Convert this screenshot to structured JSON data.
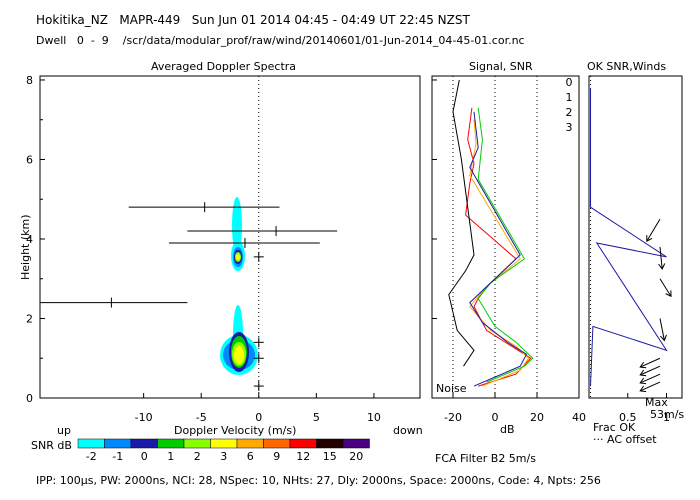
{
  "header": {
    "line1": "Hokitika_NZ   MAPR-449   Sun Jun 01 2014 04:45 - 04:49 UT 22:45 NZST",
    "line2": "Dwell   0  -  9    /scr/data/modular_prof/raw/wind/20140601/01-Jun-2014_04-45-01.cor.nc"
  },
  "chart_data": [
    {
      "type": "scatter",
      "title": "Averaged Doppler Spectra",
      "xlabel": "Doppler Velocity (m/s)",
      "ylabel": "Height (km)",
      "xlim": [
        -19,
        14
      ],
      "ylim": [
        0,
        8.1
      ],
      "xticks": [
        -10,
        -5,
        0,
        5,
        10
      ],
      "yticks": [
        0,
        2,
        4,
        6,
        8
      ],
      "direction_labels": {
        "left": "up",
        "right": "down"
      },
      "error_bars": [
        {
          "h": 4.8,
          "v": -4.7,
          "lo": -11.3,
          "hi": 1.8
        },
        {
          "h": 4.2,
          "v": 1.5,
          "lo": -6.2,
          "hi": 6.8
        },
        {
          "h": 3.9,
          "v": -1.2,
          "lo": -7.8,
          "hi": 5.3
        },
        {
          "h": 2.4,
          "v": -12.8,
          "lo": -19,
          "hi": -6.2
        }
      ],
      "moments": [
        {
          "h": 3.55,
          "v": 0.0
        },
        {
          "h": 1.4,
          "v": 0.0
        },
        {
          "h": 1.0,
          "v": 0.0
        },
        {
          "h": 0.3,
          "v": 0.0
        }
      ]
    },
    {
      "type": "line",
      "title": "Signal, SNR",
      "xlabel": "dB",
      "xlim": [
        -30,
        40
      ],
      "ylim": [
        0,
        8.1
      ],
      "xticks": [
        -20,
        0,
        20,
        40
      ],
      "note": "Noise",
      "series": [
        {
          "name": "0",
          "color": "#ff0000",
          "points": [
            [
              -8,
              0.3
            ],
            [
              10,
              0.6
            ],
            [
              17,
              1.0
            ],
            [
              8,
              1.3
            ],
            [
              -4,
              1.7
            ],
            [
              -10,
              2.3
            ],
            [
              -6,
              2.7
            ],
            [
              10,
              3.5
            ],
            [
              -14,
              4.6
            ],
            [
              -12,
              5.4
            ],
            [
              -10,
              5.9
            ],
            [
              -13,
              6.5
            ],
            [
              -11,
              7.3
            ]
          ]
        },
        {
          "name": "1",
          "color": "#ffaa00",
          "points": [
            [
              -6,
              0.3
            ],
            [
              12,
              0.7
            ],
            [
              16,
              1.0
            ],
            [
              10,
              1.3
            ],
            [
              -2,
              1.7
            ],
            [
              -12,
              2.3
            ],
            [
              -4,
              2.8
            ],
            [
              12,
              3.5
            ],
            [
              -12,
              5.6
            ],
            [
              -9,
              6.4
            ],
            [
              -10,
              7.0
            ]
          ]
        },
        {
          "name": "2",
          "color": "#00cc00",
          "points": [
            [
              -4,
              0.4
            ],
            [
              14,
              0.8
            ],
            [
              18,
              1.0
            ],
            [
              10,
              1.4
            ],
            [
              0,
              1.8
            ],
            [
              -8,
              2.5
            ],
            [
              -2,
              2.9
            ],
            [
              14,
              3.5
            ],
            [
              -8,
              5.5
            ],
            [
              -6,
              6.5
            ],
            [
              -8,
              7.3
            ]
          ]
        },
        {
          "name": "3",
          "color": "#1a1aa8",
          "points": [
            [
              -10,
              0.3
            ],
            [
              12,
              0.8
            ],
            [
              15,
              1.1
            ],
            [
              6,
              1.4
            ],
            [
              -6,
              1.9
            ],
            [
              -12,
              2.4
            ],
            [
              0,
              3.0
            ],
            [
              12,
              3.6
            ],
            [
              -12,
              5.8
            ],
            [
              -8,
              6.3
            ],
            [
              -10,
              7.2
            ]
          ]
        },
        {
          "name": "signal",
          "color": "#000000",
          "points": [
            [
              -15,
              0.8
            ],
            [
              -10,
              1.2
            ],
            [
              -18,
              1.7
            ],
            [
              -22,
              2.6
            ],
            [
              -14,
              3.2
            ],
            [
              -10,
              3.6
            ],
            [
              -16,
              6.0
            ],
            [
              -20,
              7.2
            ],
            [
              -17,
              8.0
            ]
          ]
        }
      ]
    },
    {
      "type": "line",
      "title": "OK SNR,Winds",
      "xlabel": "Frac OK",
      "xlim": [
        0,
        1.2
      ],
      "ylim": [
        0,
        8.1
      ],
      "xticks": [
        0.5,
        1
      ],
      "legend": [
        "0",
        "1",
        "2",
        "3"
      ],
      "offset_note": "··· AC offset",
      "max_label": "Max",
      "max_value": "53m/s",
      "frac_ok": [
        [
          0.02,
          0.3
        ],
        [
          0.05,
          1.8
        ],
        [
          1.0,
          1.2
        ],
        [
          0.1,
          3.9
        ],
        [
          1.0,
          3.55
        ],
        [
          0.02,
          4.8
        ],
        [
          0.02,
          7.8
        ]
      ],
      "wind_barbs": [
        {
          "h": 4.5,
          "u": -0.6,
          "v": -1.0
        },
        {
          "h": 3.8,
          "u": 0.1,
          "v": -1.0
        },
        {
          "h": 3.0,
          "u": 0.5,
          "v": -0.8
        },
        {
          "h": 2.0,
          "u": 0.2,
          "v": -1.0
        },
        {
          "h": 1.0,
          "u": -0.9,
          "v": -0.4
        },
        {
          "h": 0.8,
          "u": -0.9,
          "v": -0.4
        },
        {
          "h": 0.6,
          "u": -0.9,
          "v": -0.4
        },
        {
          "h": 0.4,
          "u": -0.9,
          "v": -0.4
        }
      ]
    }
  ],
  "colorbar": {
    "label": "SNR dB",
    "ticks": [
      "-2",
      "-1",
      "0",
      "1",
      "2",
      "3",
      "6",
      "9",
      "12",
      "15",
      "20"
    ],
    "colors": [
      "#00ffff",
      "#0088ff",
      "#1a1aa8",
      "#00cc00",
      "#88ff00",
      "#ffff00",
      "#ffaa00",
      "#ff6600",
      "#ff0000",
      "#220000",
      "#4b0082"
    ]
  },
  "footer": {
    "filter": "FCA Filter B2  5m/s",
    "params": "IPP: 100μs,   PW: 2000ns,   NCI:  28,   NSpec: 10,  NHts: 27,   Dly: 2000ns,   Space: 2000ns,   Code: 4,   Npts: 256"
  }
}
